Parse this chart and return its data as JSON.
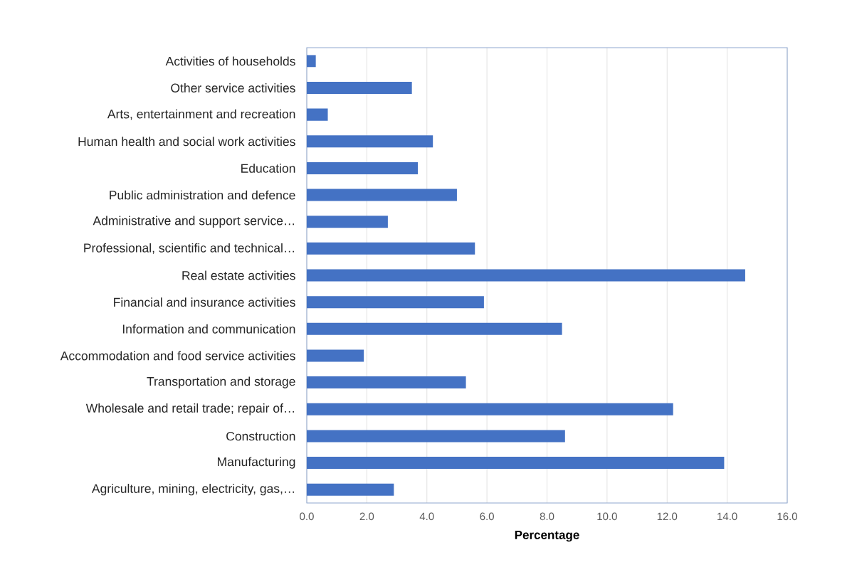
{
  "chart_data": {
    "type": "bar",
    "orientation": "horizontal",
    "xlabel": "Percentage",
    "categories": [
      "Activities of households",
      "Other service activities",
      "Arts, entertainment and recreation",
      "Human health and social work activities",
      "Education",
      "Public administration and defence",
      "Administrative and support service…",
      "Professional, scientific and technical…",
      "Real estate activities",
      "Financial and insurance activities",
      "Information and communication",
      "Accommodation and food service activities",
      "Transportation and storage",
      "Wholesale and retail trade; repair of…",
      "Construction",
      "Manufacturing",
      "Agriculture, mining, electricity, gas,…"
    ],
    "values": [
      0.3,
      3.5,
      0.7,
      4.2,
      3.7,
      5.0,
      2.7,
      5.6,
      14.6,
      5.9,
      8.5,
      1.9,
      5.3,
      12.2,
      8.6,
      13.9,
      2.9
    ],
    "color": "#4472c4",
    "xlim": [
      0,
      16
    ],
    "xticks": [
      {
        "value": 0,
        "label": "0.0"
      },
      {
        "value": 2,
        "label": "2.0"
      },
      {
        "value": 4,
        "label": "4.0"
      },
      {
        "value": 6,
        "label": "6.0"
      },
      {
        "value": 8,
        "label": "8.0"
      },
      {
        "value": 10,
        "label": "10.0"
      },
      {
        "value": 12,
        "label": "12.0"
      },
      {
        "value": 14,
        "label": "14.0"
      },
      {
        "value": 16,
        "label": "16.0"
      }
    ],
    "grid": "x"
  }
}
